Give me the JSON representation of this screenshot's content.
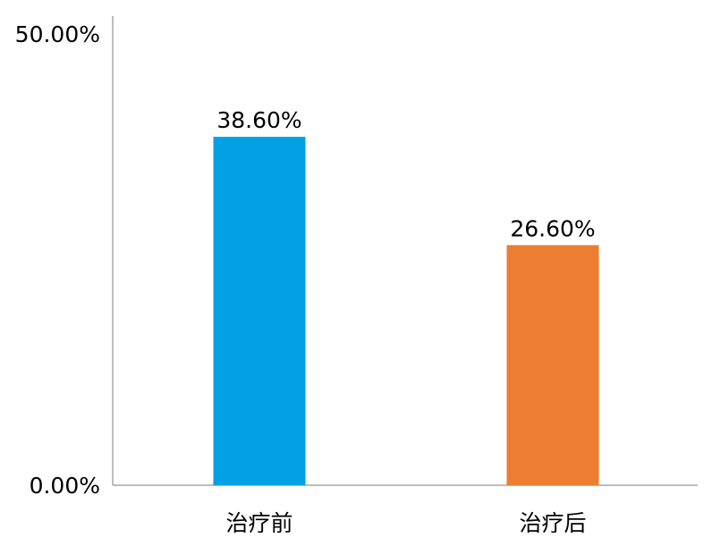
{
  "chart_data": {
    "type": "bar",
    "categories": [
      "治疗前",
      "治疗后"
    ],
    "values": [
      38.6,
      26.6
    ],
    "data_labels": [
      "38.60%",
      "26.60%"
    ],
    "series_colors": [
      "#03a0e4",
      "#ec7d31"
    ],
    "ylim": [
      0,
      50
    ],
    "yticks": [
      0,
      50
    ],
    "ytick_labels": [
      "0.00%",
      "50.00%"
    ],
    "title": "",
    "xlabel": "",
    "ylabel": "",
    "grid": false,
    "legend": "none"
  }
}
